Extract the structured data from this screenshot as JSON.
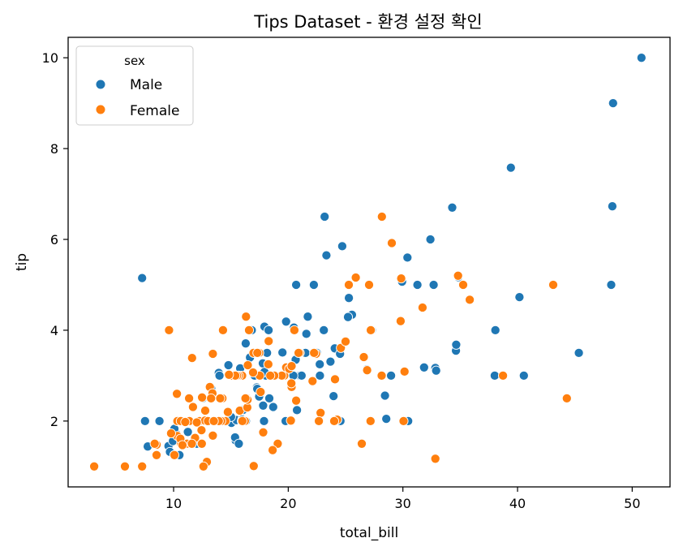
{
  "chart_data": {
    "type": "scatter",
    "title": "Tips Dataset - 환경 설정 확인",
    "xlabel": "total_bill",
    "ylabel": "tip",
    "xlim": [
      0.8,
      53.3
    ],
    "ylim": [
      0.55,
      10.45
    ],
    "xticks": [
      10,
      20,
      30,
      40,
      50
    ],
    "yticks": [
      2,
      4,
      6,
      8,
      10
    ],
    "grid": false,
    "legend": {
      "title": "sex",
      "position": "top-left"
    },
    "series": [
      {
        "name": "Male",
        "color": "#1f77b4",
        "points": [
          [
            10.34,
            1.66
          ],
          [
            21.01,
            3.5
          ],
          [
            23.68,
            3.31
          ],
          [
            25.29,
            4.71
          ],
          [
            8.77,
            2.0
          ],
          [
            26.88,
            3.12
          ],
          [
            15.04,
            1.96
          ],
          [
            14.78,
            3.23
          ],
          [
            10.27,
            1.71
          ],
          [
            15.42,
            1.57
          ],
          [
            18.43,
            3.0
          ],
          [
            21.58,
            3.92
          ],
          [
            16.29,
            3.71
          ],
          [
            20.65,
            3.35
          ],
          [
            17.92,
            4.08
          ],
          [
            39.42,
            7.58
          ],
          [
            19.82,
            3.18
          ],
          [
            17.81,
            2.34
          ],
          [
            13.37,
            2.0
          ],
          [
            12.69,
            2.0
          ],
          [
            21.7,
            4.3
          ],
          [
            9.55,
            1.45
          ],
          [
            18.35,
            2.5
          ],
          [
            17.78,
            3.27
          ],
          [
            24.06,
            3.6
          ],
          [
            16.31,
            2.0
          ],
          [
            18.69,
            2.31
          ],
          [
            31.27,
            5.0
          ],
          [
            16.04,
            2.24
          ],
          [
            17.46,
            2.54
          ],
          [
            13.94,
            3.06
          ],
          [
            9.68,
            1.32
          ],
          [
            30.4,
            5.6
          ],
          [
            18.29,
            3.0
          ],
          [
            22.23,
            5.0
          ],
          [
            32.4,
            6.0
          ],
          [
            28.55,
            2.05
          ],
          [
            18.04,
            3.0
          ],
          [
            12.54,
            2.5
          ],
          [
            9.94,
            1.56
          ],
          [
            25.56,
            4.34
          ],
          [
            19.49,
            3.51
          ],
          [
            38.07,
            4.0
          ],
          [
            23.95,
            2.55
          ],
          [
            29.93,
            5.07
          ],
          [
            14.07,
            2.5
          ],
          [
            13.13,
            2.0
          ],
          [
            17.26,
            2.74
          ],
          [
            24.55,
            2.0
          ],
          [
            19.77,
            2.0
          ],
          [
            48.17,
            5.0
          ],
          [
            16.93,
            3.07
          ],
          [
            21.16,
            3.0
          ],
          [
            28.97,
            3.0
          ],
          [
            22.49,
            3.5
          ],
          [
            40.17,
            4.73
          ],
          [
            27.28,
            4.0
          ],
          [
            12.03,
            1.5
          ],
          [
            21.01,
            3.0
          ],
          [
            12.46,
            1.5
          ],
          [
            15.36,
            1.64
          ],
          [
            20.49,
            4.06
          ],
          [
            25.21,
            4.29
          ],
          [
            18.24,
            3.76
          ],
          [
            14.0,
            3.0
          ],
          [
            7.25,
            5.15
          ],
          [
            38.01,
            3.0
          ],
          [
            11.24,
            1.76
          ],
          [
            48.27,
            6.73
          ],
          [
            20.29,
            3.21
          ],
          [
            20.65,
            3.35
          ],
          [
            17.46,
            3.0
          ],
          [
            21.5,
            3.5
          ],
          [
            12.74,
            2.01
          ],
          [
            18.26,
            3.25
          ],
          [
            32.83,
            1.17
          ],
          [
            35.83,
            4.67
          ],
          [
            29.03,
            5.92
          ],
          [
            27.18,
            2.0
          ],
          [
            22.67,
            2.0
          ],
          [
            17.82,
            1.75
          ],
          [
            18.78,
            3.0
          ],
          [
            24.08,
            2.92
          ],
          [
            28.44,
            2.56
          ],
          [
            34.3,
            6.7
          ],
          [
            15.48,
            2.02
          ],
          [
            26.59,
            3.41
          ],
          [
            38.73,
            3.0
          ],
          [
            24.27,
            2.03
          ],
          [
            12.76,
            2.23
          ],
          [
            30.06,
            2.0
          ],
          [
            25.89,
            5.16
          ],
          [
            48.33,
            9.0
          ],
          [
            13.27,
            2.5
          ],
          [
            28.17,
            6.5
          ],
          [
            12.9,
            1.1
          ],
          [
            28.15,
            3.0
          ],
          [
            11.59,
            1.5
          ],
          [
            7.74,
            1.44
          ],
          [
            30.14,
            3.09
          ],
          [
            16.58,
            4.0
          ],
          [
            11.87,
            1.63
          ],
          [
            9.78,
            1.73
          ],
          [
            7.51,
            2.0
          ],
          [
            10.07,
            1.25
          ],
          [
            12.6,
            1.0
          ],
          [
            32.83,
            3.17
          ],
          [
            15.01,
            2.09
          ],
          [
            12.02,
            1.97
          ],
          [
            17.07,
            3.0
          ],
          [
            26.86,
            3.14
          ],
          [
            25.28,
            5.0
          ],
          [
            14.73,
            2.2
          ],
          [
            10.51,
            1.25
          ],
          [
            17.92,
            3.08
          ],
          [
            27.2,
            4.0
          ],
          [
            22.76,
            3.0
          ],
          [
            17.29,
            2.71
          ],
          [
            19.44,
            3.0
          ],
          [
            16.66,
            3.4
          ],
          [
            10.07,
            1.83
          ],
          [
            32.68,
            5.0
          ],
          [
            15.98,
            2.03
          ],
          [
            34.83,
            5.17
          ],
          [
            13.03,
            2.0
          ],
          [
            18.28,
            4.0
          ],
          [
            24.71,
            5.85
          ],
          [
            21.16,
            3.0
          ],
          [
            28.97,
            3.0
          ],
          [
            22.49,
            3.5
          ],
          [
            5.75,
            1.0
          ],
          [
            16.32,
            4.3
          ],
          [
            22.75,
            3.25
          ],
          [
            40.55,
            3.0
          ],
          [
            20.69,
            5.0
          ],
          [
            20.9,
            3.5
          ],
          [
            30.46,
            2.0
          ],
          [
            18.15,
            3.5
          ],
          [
            23.1,
            4.0
          ],
          [
            15.69,
            1.5
          ],
          [
            26.41,
            1.5
          ],
          [
            16.45,
            2.47
          ],
          [
            10.33,
            2.0
          ],
          [
            50.81,
            10.0
          ],
          [
            15.81,
            3.16
          ],
          [
            31.85,
            3.18
          ],
          [
            16.82,
            4.0
          ],
          [
            32.9,
            3.11
          ],
          [
            17.89,
            2.0
          ],
          [
            14.48,
            2.0
          ],
          [
            34.63,
            3.55
          ],
          [
            34.65,
            3.68
          ],
          [
            23.33,
            5.65
          ],
          [
            45.35,
            3.5
          ],
          [
            23.17,
            6.5
          ],
          [
            40.17,
            4.73
          ],
          [
            20.76,
            2.24
          ],
          [
            35.26,
            5.0
          ],
          [
            11.61,
            3.39
          ],
          [
            10.77,
            1.47
          ],
          [
            24.52,
            3.48
          ],
          [
            20.45,
            3.0
          ],
          [
            13.28,
            2.72
          ],
          [
            22.12,
            2.88
          ],
          [
            16.0,
            2.0
          ],
          [
            15.69,
            3.0
          ],
          [
            11.38,
            2.0
          ],
          [
            22.82,
            2.18
          ],
          [
            19.81,
            4.19
          ]
        ]
      },
      {
        "name": "Female",
        "color": "#ff7f0e",
        "points": [
          [
            16.99,
            1.01
          ],
          [
            24.59,
            3.61
          ],
          [
            35.26,
            5.0
          ],
          [
            14.83,
            3.02
          ],
          [
            10.33,
            1.67
          ],
          [
            16.97,
            3.5
          ],
          [
            20.29,
            2.75
          ],
          [
            15.77,
            2.23
          ],
          [
            19.65,
            3.0
          ],
          [
            15.06,
            3.0
          ],
          [
            20.69,
            2.45
          ],
          [
            16.93,
            3.07
          ],
          [
            10.29,
            2.6
          ],
          [
            34.81,
            5.2
          ],
          [
            26.41,
            1.5
          ],
          [
            16.45,
            2.47
          ],
          [
            3.07,
            1.0
          ],
          [
            10.65,
            1.5
          ],
          [
            12.43,
            1.8
          ],
          [
            24.08,
            2.92
          ],
          [
            11.69,
            2.31
          ],
          [
            13.42,
            1.68
          ],
          [
            14.26,
            2.5
          ],
          [
            15.95,
            2.0
          ],
          [
            12.48,
            2.52
          ],
          [
            29.8,
            4.2
          ],
          [
            8.52,
            1.48
          ],
          [
            14.52,
            2.0
          ],
          [
            11.38,
            2.0
          ],
          [
            22.82,
            2.18
          ],
          [
            19.08,
            1.5
          ],
          [
            20.27,
            2.83
          ],
          [
            11.17,
            1.5
          ],
          [
            12.26,
            2.0
          ],
          [
            18.26,
            3.25
          ],
          [
            8.51,
            1.25
          ],
          [
            10.33,
            2.0
          ],
          [
            14.15,
            2.0
          ],
          [
            13.16,
            2.75
          ],
          [
            17.47,
            3.5
          ],
          [
            27.05,
            5.0
          ],
          [
            16.43,
            2.3
          ],
          [
            8.35,
            1.5
          ],
          [
            18.64,
            1.36
          ],
          [
            11.87,
            1.63
          ],
          [
            29.85,
            5.14
          ],
          [
            25.0,
            3.75
          ],
          [
            13.39,
            2.61
          ],
          [
            16.21,
            2.0
          ],
          [
            17.51,
            3.0
          ],
          [
            10.59,
            1.61
          ],
          [
            10.63,
            2.0
          ],
          [
            9.6,
            4.0
          ],
          [
            34.81,
            5.2
          ],
          [
            18.78,
            3.0
          ],
          [
            43.11,
            5.0
          ],
          [
            13.0,
            2.0
          ],
          [
            12.74,
            2.01
          ],
          [
            13.0,
            2.0
          ],
          [
            16.4,
            2.5
          ],
          [
            20.53,
            4.0
          ],
          [
            16.47,
            3.23
          ],
          [
            26.59,
            3.41
          ],
          [
            38.73,
            3.0
          ],
          [
            24.27,
            2.03
          ],
          [
            12.76,
            2.23
          ],
          [
            30.06,
            2.0
          ],
          [
            25.89,
            5.16
          ],
          [
            13.27,
            2.5
          ],
          [
            28.17,
            6.5
          ],
          [
            12.9,
            1.1
          ],
          [
            28.15,
            3.0
          ],
          [
            11.59,
            1.5
          ],
          [
            30.14,
            3.09
          ],
          [
            16.58,
            4.0
          ],
          [
            19.82,
            3.18
          ],
          [
            13.81,
            2.0
          ],
          [
            11.02,
            1.98
          ],
          [
            18.29,
            3.76
          ],
          [
            17.59,
            2.64
          ],
          [
            20.08,
            3.15
          ],
          [
            16.45,
            2.47
          ],
          [
            27.05,
            5.0
          ],
          [
            7.25,
            1.0
          ],
          [
            31.71,
            4.5
          ],
          [
            15.98,
            3.0
          ],
          [
            22.42,
            3.48
          ],
          [
            19.44,
            3.0
          ],
          [
            14.31,
            4.0
          ],
          [
            13.94,
            2.0
          ],
          [
            22.12,
            2.88
          ],
          [
            24.01,
            2.0
          ],
          [
            15.69,
            3.0
          ],
          [
            11.61,
            3.39
          ],
          [
            10.77,
            1.47
          ],
          [
            15.53,
            3.0
          ],
          [
            10.07,
            1.25
          ],
          [
            12.6,
            1.0
          ],
          [
            32.83,
            1.17
          ],
          [
            35.83,
            4.67
          ],
          [
            29.03,
            5.92
          ],
          [
            27.18,
            2.0
          ],
          [
            22.67,
            2.0
          ],
          [
            17.82,
            1.75
          ],
          [
            18.78,
            3.0
          ],
          [
            44.3,
            2.5
          ],
          [
            5.75,
            1.0
          ],
          [
            22.25,
            3.5
          ],
          [
            25.28,
            5.0
          ],
          [
            16.32,
            4.3
          ],
          [
            11.35,
            2.5
          ],
          [
            15.38,
            3.0
          ],
          [
            16.27,
            2.5
          ],
          [
            20.23,
            2.01
          ],
          [
            12.02,
            1.97
          ],
          [
            21.01,
            3.5
          ],
          [
            16.0,
            2.0
          ],
          [
            9.78,
            1.73
          ],
          [
            14.07,
            2.5
          ],
          [
            17.31,
            3.5
          ],
          [
            16.93,
            3.07
          ],
          [
            13.42,
            3.48
          ],
          [
            14.83,
            3.02
          ],
          [
            25.0,
            3.75
          ],
          [
            18.43,
            3.0
          ],
          [
            26.88,
            3.12
          ],
          [
            14.73,
            2.2
          ],
          [
            12.46,
            1.5
          ],
          [
            20.9,
            3.5
          ],
          [
            13.51,
            2.0
          ],
          [
            27.2,
            4.0
          ],
          [
            20.29,
            3.21
          ]
        ]
      }
    ]
  }
}
